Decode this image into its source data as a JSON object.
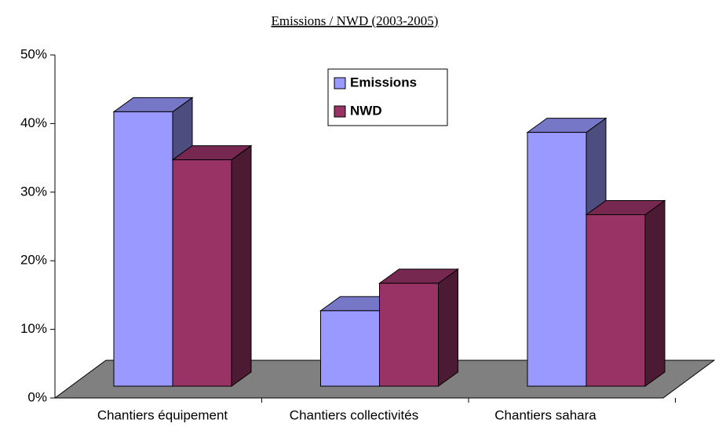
{
  "chart_data": {
    "type": "bar3d",
    "title": "Emissions / NWD (2003-2005)",
    "categories": [
      "Chantiers équipement",
      "Chantiers collectivités",
      "Chantiers sahara"
    ],
    "series": [
      {
        "name": "Emissions",
        "color": "#9999ff",
        "values": [
          40,
          11,
          37
        ]
      },
      {
        "name": "NWD",
        "color": "#993366",
        "values": [
          33,
          15,
          25
        ]
      }
    ],
    "ylim": [
      0,
      50
    ],
    "yticks": [
      {
        "value": 0,
        "label": "0%"
      },
      {
        "value": 10,
        "label": "10%"
      },
      {
        "value": 20,
        "label": "20%"
      },
      {
        "value": 30,
        "label": "30%"
      },
      {
        "value": 40,
        "label": "40%"
      },
      {
        "value": 50,
        "label": "50%"
      }
    ],
    "legend": "top-center"
  }
}
